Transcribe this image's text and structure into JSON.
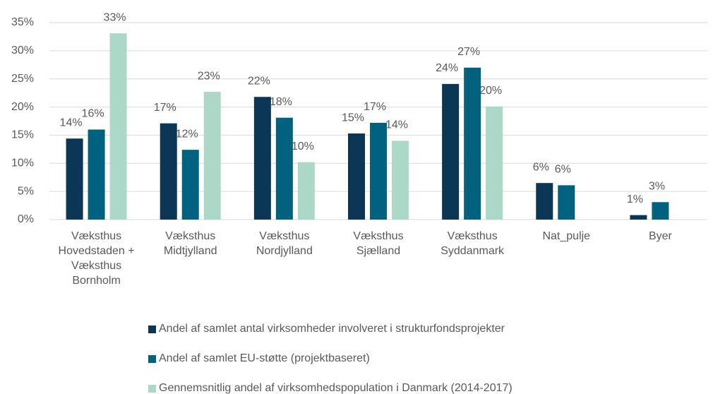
{
  "chart_data": {
    "type": "bar",
    "categories": [
      "Væksthus Hovedstaden + Væksthus Bornholm",
      "Væksthus Midtjylland",
      "Væksthus Nordjylland",
      "Væksthus Sjælland",
      "Væksthus Syddanmark",
      "Nat_pulje",
      "Byer"
    ],
    "series": [
      {
        "name": "Andel af samlet antal virksomheder involveret i strukturfondsprojekter",
        "color": "#0b3656",
        "values": [
          14.4,
          17.1,
          21.8,
          15.3,
          24.1,
          6.5,
          0.8
        ],
        "value_labels": [
          "14%",
          "17%",
          "22%",
          "15%",
          "24%",
          "6%",
          "1%"
        ]
      },
      {
        "name": "Andel af samlet EU-støtte (projektbaseret)",
        "color": "#00627f",
        "values": [
          16.0,
          12.4,
          18.1,
          17.2,
          27.0,
          6.1,
          3.1
        ],
        "value_labels": [
          "16%",
          "12%",
          "18%",
          "17%",
          "27%",
          "6%",
          "3%"
        ]
      },
      {
        "name": "Gennemsnitlig andel af virksomhedspopulation i Danmark (2014-2017)",
        "color": "#acd9c7",
        "values": [
          33.1,
          22.7,
          10.2,
          14.0,
          20.1,
          null,
          null
        ],
        "value_labels": [
          "33%",
          "23%",
          "10%",
          "14%",
          "20%",
          null,
          null
        ]
      }
    ],
    "ylim": [
      0,
      35
    ],
    "yticks": [
      {
        "value": 0,
        "label": "0%"
      },
      {
        "value": 5,
        "label": "5%"
      },
      {
        "value": 10,
        "label": "10%"
      },
      {
        "value": 15,
        "label": "15%"
      },
      {
        "value": 20,
        "label": "20%"
      },
      {
        "value": 25,
        "label": "25%"
      },
      {
        "value": 30,
        "label": "30%"
      },
      {
        "value": 35,
        "label": "35%"
      }
    ],
    "grid": true
  }
}
